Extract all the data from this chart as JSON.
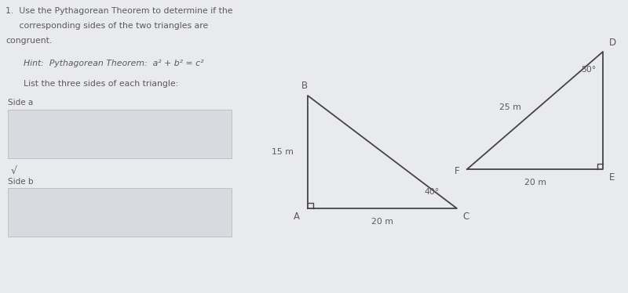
{
  "bg_color": "#e9eaed",
  "title_line1": "1.  Use the Pythagorean Theorem to determine if the",
  "title_line2": "     corresponding sides of the two triangles are",
  "title_line3": "congruent.",
  "hint_text": "Hint:  Pythagorean Theorem:  a² + b² = c²",
  "list_text": "List the three sides of each triangle:",
  "side_a_text": "Side a",
  "side_b_text": "Side b",
  "sqrt_text": "√",
  "text_color": "#5a5a5a",
  "line_color": "#444444",
  "box_color": "#d8dae0",
  "box_edge": "#bbbbbb",
  "tri1_A": [
    3.92,
    1.08
  ],
  "tri1_B": [
    3.92,
    2.52
  ],
  "tri1_C": [
    5.82,
    1.08
  ],
  "tri1_label_A": "A",
  "tri1_label_B": "B",
  "tri1_label_C": "C",
  "tri1_side_AB": "15 m",
  "tri1_side_AC": "20 m",
  "tri1_angle_C": "40°",
  "tri2_F": [
    5.95,
    1.58
  ],
  "tri2_E": [
    7.68,
    1.58
  ],
  "tri2_D": [
    7.68,
    3.08
  ],
  "tri2_label_F": "F",
  "tri2_label_E": "E",
  "tri2_label_D": "D",
  "tri2_side_FD": "25 m",
  "tri2_side_FE": "20 m",
  "tri2_angle_D": "50°"
}
